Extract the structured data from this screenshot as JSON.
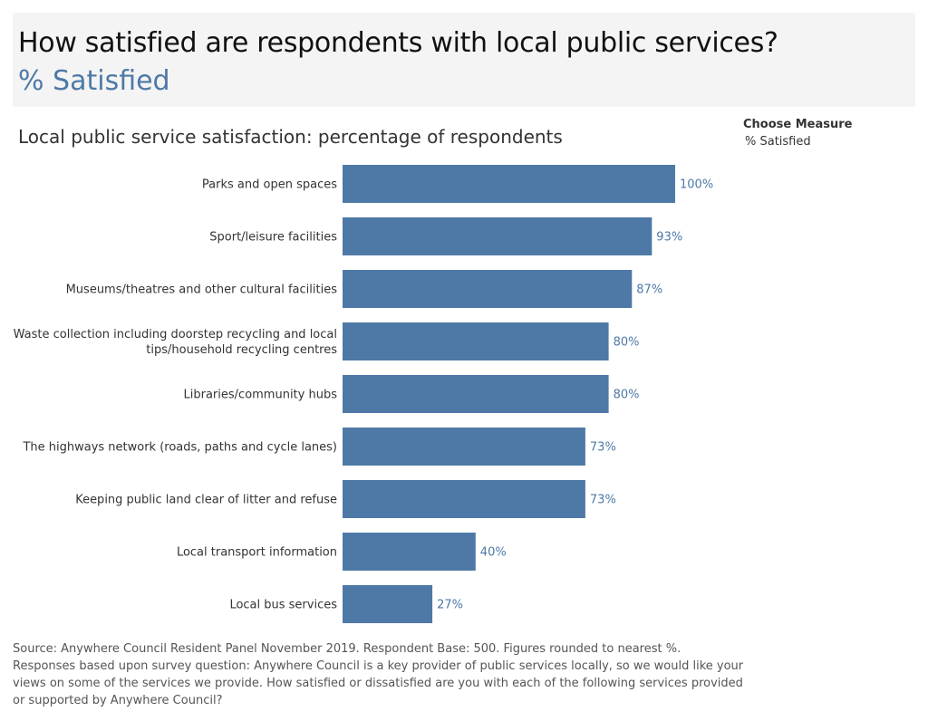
{
  "header": {
    "title": "How satisfied are respondents with local public services?",
    "subtitle": "% Satisfied"
  },
  "controls": {
    "measure_label": "Choose Measure",
    "measure_value": "% Satisfied"
  },
  "colors": {
    "bar": "#4e79a7",
    "value_label": "#4e79a7",
    "header_bg": "#f4f4f4"
  },
  "chart_data": {
    "type": "bar",
    "orientation": "horizontal",
    "title": "Local public service satisfaction: percentage of respondents",
    "xlabel": "",
    "ylabel": "",
    "xlim": [
      0,
      100
    ],
    "grid": false,
    "categories": [
      [
        "Parks and open spaces"
      ],
      [
        "Sport/leisure facilities"
      ],
      [
        "Museums/theatres and other cultural facilities"
      ],
      [
        "Waste collection including doorstep recycling and local",
        "tips/household recycling centres"
      ],
      [
        "Libraries/community hubs"
      ],
      [
        "The highways network (roads, paths and cycle lanes)"
      ],
      [
        "Keeping public land clear of litter and refuse"
      ],
      [
        "Local transport information"
      ],
      [
        "Local bus services"
      ]
    ],
    "values": [
      100,
      93,
      87,
      80,
      80,
      73,
      73,
      40,
      27
    ],
    "value_labels": [
      "100%",
      "93%",
      "87%",
      "80%",
      "80%",
      "73%",
      "73%",
      "40%",
      "27%"
    ]
  },
  "footnote": {
    "lines": [
      "Source: Anywhere Council Resident Panel November 2019.  Respondent Base: 500. Figures rounded to nearest %.",
      "Responses based upon survey question:  Anywhere Council is a key provider of public services locally, so we would like your",
      "views on some of the services we provide. How satisfied or dissatisfied are you with each of the following services provided",
      "or supported by Anywhere Council?"
    ]
  }
}
